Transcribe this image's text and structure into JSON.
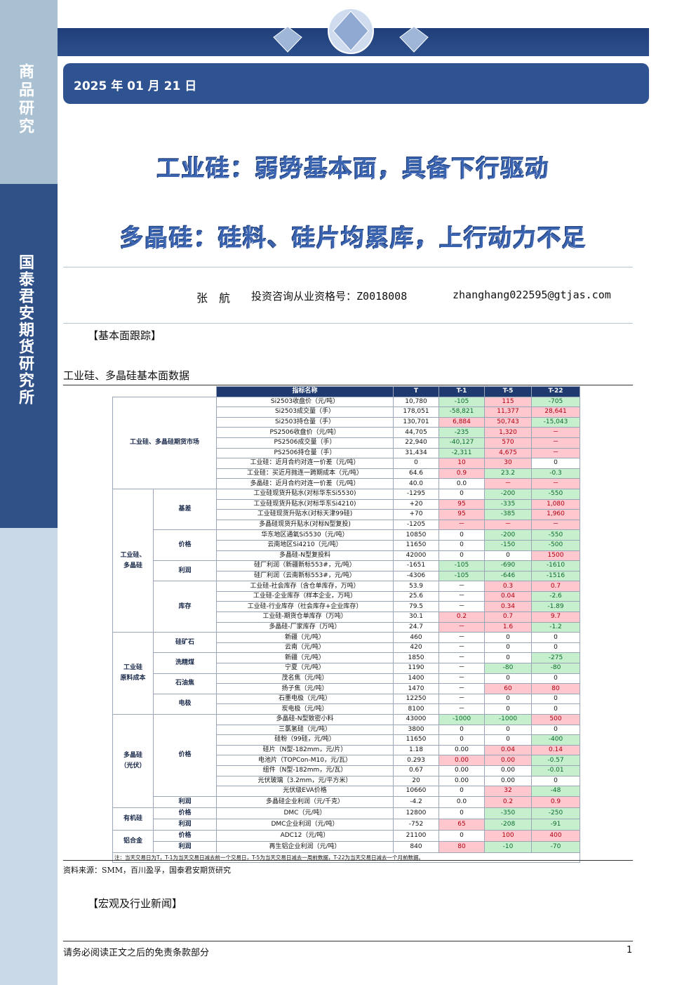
{
  "sidebar": {
    "top": "商品研究",
    "bottom": "国泰君安期货研究所"
  },
  "header": {
    "date": "2025 年 01 月 21 日",
    "titles": [
      "工业硅：弱势基本面，具备下行驱动",
      "多晶硅：硅料、硅片均累库，上行动力不足"
    ],
    "author": "张　航",
    "license": "投资咨询从业资格号：Z0018008",
    "email": "zhanghang022595@gtjas.com"
  },
  "sections": {
    "fundamentals": "【基本面跟踪】",
    "table_title": "工业硅、多晶硅基本面数据",
    "source": "资料来源：SMM，百川盈孚，国泰君安期货研究",
    "news": "【宏观及行业新闻】"
  },
  "table": {
    "columns": [
      "指标名称",
      "T",
      "T-1",
      "T-5",
      "T-22"
    ],
    "groups": [
      {
        "label": "工业硅、多晶硅期货市场",
        "rows": [
          [
            "Si2503收盘价（元/吨）",
            "10,780",
            "-105",
            "115",
            "-705"
          ],
          [
            "Si2503成交量（手）",
            "178,051",
            "-58,821",
            "11,377",
            "28,641"
          ],
          [
            "Si2503持仓量（手）",
            "130,701",
            "6,884",
            "50,743",
            "-15,043"
          ],
          [
            "PS2506收盘价（元/吨）",
            "44,705",
            "-235",
            "1,320",
            "－"
          ],
          [
            "PS2506成交量（手）",
            "22,940",
            "-40,127",
            "570",
            "－"
          ],
          [
            "PS2506持仓量（手）",
            "31,434",
            "-2,311",
            "4,675",
            "－"
          ],
          [
            "工业硅：近月合约对连一价差（元/吨）",
            "0",
            "10",
            "30",
            "0"
          ],
          [
            "工业硅：买近月抛连一跨期成本（元/吨）",
            "64.6",
            "0.9",
            "23.2",
            "-0.3"
          ],
          [
            "多晶硅：近月合约对连一价差（元/吨）",
            "40.0",
            "0.0",
            "－",
            "－"
          ]
        ]
      },
      {
        "label": "工业硅、\n多晶硅",
        "subgroups": [
          {
            "label": "基差",
            "rows": [
              [
                "工业硅现货升贴水(对标华东Si5530)",
                "-1295",
                "0",
                "-200",
                "-550"
              ],
              [
                "工业硅现货升贴水(对标华东Si4210)",
                "+20",
                "95",
                "-335",
                "1,080"
              ],
              [
                "工业硅现货升贴水(对标天津99硅)",
                "+70",
                "95",
                "-385",
                "1,960"
              ],
              [
                "多晶硅现货升贴水(对标N型复投)",
                "-1205",
                "－",
                "－",
                "－"
              ]
            ]
          },
          {
            "label": "价格",
            "rows": [
              [
                "华东地区通氧Si5530（元/吨）",
                "10850",
                "0",
                "-200",
                "-550"
              ],
              [
                "云南地区Si4210（元/吨）",
                "11650",
                "0",
                "-150",
                "-500"
              ],
              [
                "多晶硅-N型复投料",
                "42000",
                "0",
                "0",
                "1500"
              ]
            ]
          },
          {
            "label": "利润",
            "rows": [
              [
                "硅厂利润（新疆新标553#，元/吨）",
                "-1651",
                "-105",
                "-690",
                "-1610"
              ],
              [
                "硅厂利润（云南新标553#，元/吨）",
                "-4306",
                "-105",
                "-646",
                "-1516"
              ]
            ]
          },
          {
            "label": "库存",
            "rows": [
              [
                "工业硅-社会库存（含仓单库存，万吨）",
                "53.9",
                "－",
                "0.3",
                "0.7"
              ],
              [
                "工业硅-企业库存（样本企业，万吨）",
                "25.6",
                "－",
                "0.04",
                "-2.6"
              ],
              [
                "工业硅-行业库存（社会库存+企业库存）",
                "79.5",
                "－",
                "0.34",
                "-1.89"
              ],
              [
                "工业硅-期货仓单库存（万吨）",
                "30.1",
                "0.2",
                "0.7",
                "9.7"
              ],
              [
                "多晶硅-厂家库存（万吨）",
                "24.7",
                "－",
                "1.6",
                "-1.2"
              ]
            ]
          }
        ]
      },
      {
        "label": "工业硅\n原料成本",
        "subgroups": [
          {
            "label": "硅矿石",
            "rows": [
              [
                "新疆（元/吨）",
                "460",
                "－",
                "0",
                "0"
              ],
              [
                "云南（元/吨）",
                "420",
                "－",
                "0",
                "0"
              ]
            ]
          },
          {
            "label": "洗精煤",
            "rows": [
              [
                "新疆（元/吨）",
                "1850",
                "－",
                "0",
                "-275"
              ],
              [
                "宁夏（元/吨）",
                "1190",
                "－",
                "-80",
                "-80"
              ]
            ]
          },
          {
            "label": "石油焦",
            "rows": [
              [
                "茂名焦（元/吨）",
                "1400",
                "－",
                "0",
                "0"
              ],
              [
                "扬子焦（元/吨）",
                "1470",
                "－",
                "60",
                "80"
              ]
            ]
          },
          {
            "label": "电极",
            "rows": [
              [
                "石墨电极（元/吨）",
                "12250",
                "－",
                "0",
                "0"
              ],
              [
                "炭电极（元/吨）",
                "8100",
                "－",
                "0",
                "0"
              ]
            ]
          }
        ]
      },
      {
        "label": "多晶硅\n（光伏）",
        "subgroups": [
          {
            "label": "价格",
            "rows": [
              [
                "多晶硅-N型致密小料",
                "43000",
                "-1000",
                "-1000",
                "500"
              ],
              [
                "三氯氢硅（元/吨）",
                "3800",
                "0",
                "0",
                "0"
              ],
              [
                "硅粉（99硅，元/吨）",
                "11650",
                "0",
                "0",
                "-400"
              ],
              [
                "硅片（N型-182mm，元/片）",
                "1.18",
                "0.00",
                "0.04",
                "0.14"
              ],
              [
                "电池片（TOPCon-M10，元/瓦）",
                "0.293",
                "0.00",
                "0.00",
                "-0.57"
              ],
              [
                "组件（N型-182mm，元/瓦）",
                "0.67",
                "0.00",
                "0.00",
                "-0.01"
              ],
              [
                "光伏玻璃（3.2mm，元/平方米）",
                "20",
                "0.00",
                "0.00",
                "0"
              ],
              [
                "光伏级EVA价格",
                "10660",
                "0",
                "32",
                "-48"
              ]
            ]
          },
          {
            "label": "利润",
            "rows": [
              [
                "多晶硅企业利润（元/千克）",
                "-4.2",
                "0.0",
                "0.2",
                "0.9"
              ]
            ]
          }
        ]
      },
      {
        "label": "有机硅",
        "subgroups": [
          {
            "label": "价格",
            "rows": [
              [
                "DMC（元/吨）",
                "12800",
                "0",
                "-350",
                "-250"
              ]
            ]
          },
          {
            "label": "利润",
            "rows": [
              [
                "DMC企业利润（元/吨）",
                "-752",
                "65",
                "-208",
                "-91"
              ]
            ]
          }
        ]
      },
      {
        "label": "铝合金",
        "subgroups": [
          {
            "label": "价格",
            "rows": [
              [
                "ADC12（元/吨）",
                "21100",
                "0",
                "100",
                "400"
              ]
            ]
          },
          {
            "label": "利润",
            "rows": [
              [
                "再生铝企业利润（元/吨）",
                "840",
                "80",
                "-10",
                "-70"
              ]
            ]
          }
        ]
      }
    ],
    "note": "注：当天交易日为T，T-1为当天交易日减去前一个交易日，T-5为当天交易日减去一周前数据，T-22为当天交易日减去一个月前数据。"
  },
  "footer": {
    "disclaimer": "请务必阅读正文之后的免责条款部分",
    "page": "1"
  }
}
